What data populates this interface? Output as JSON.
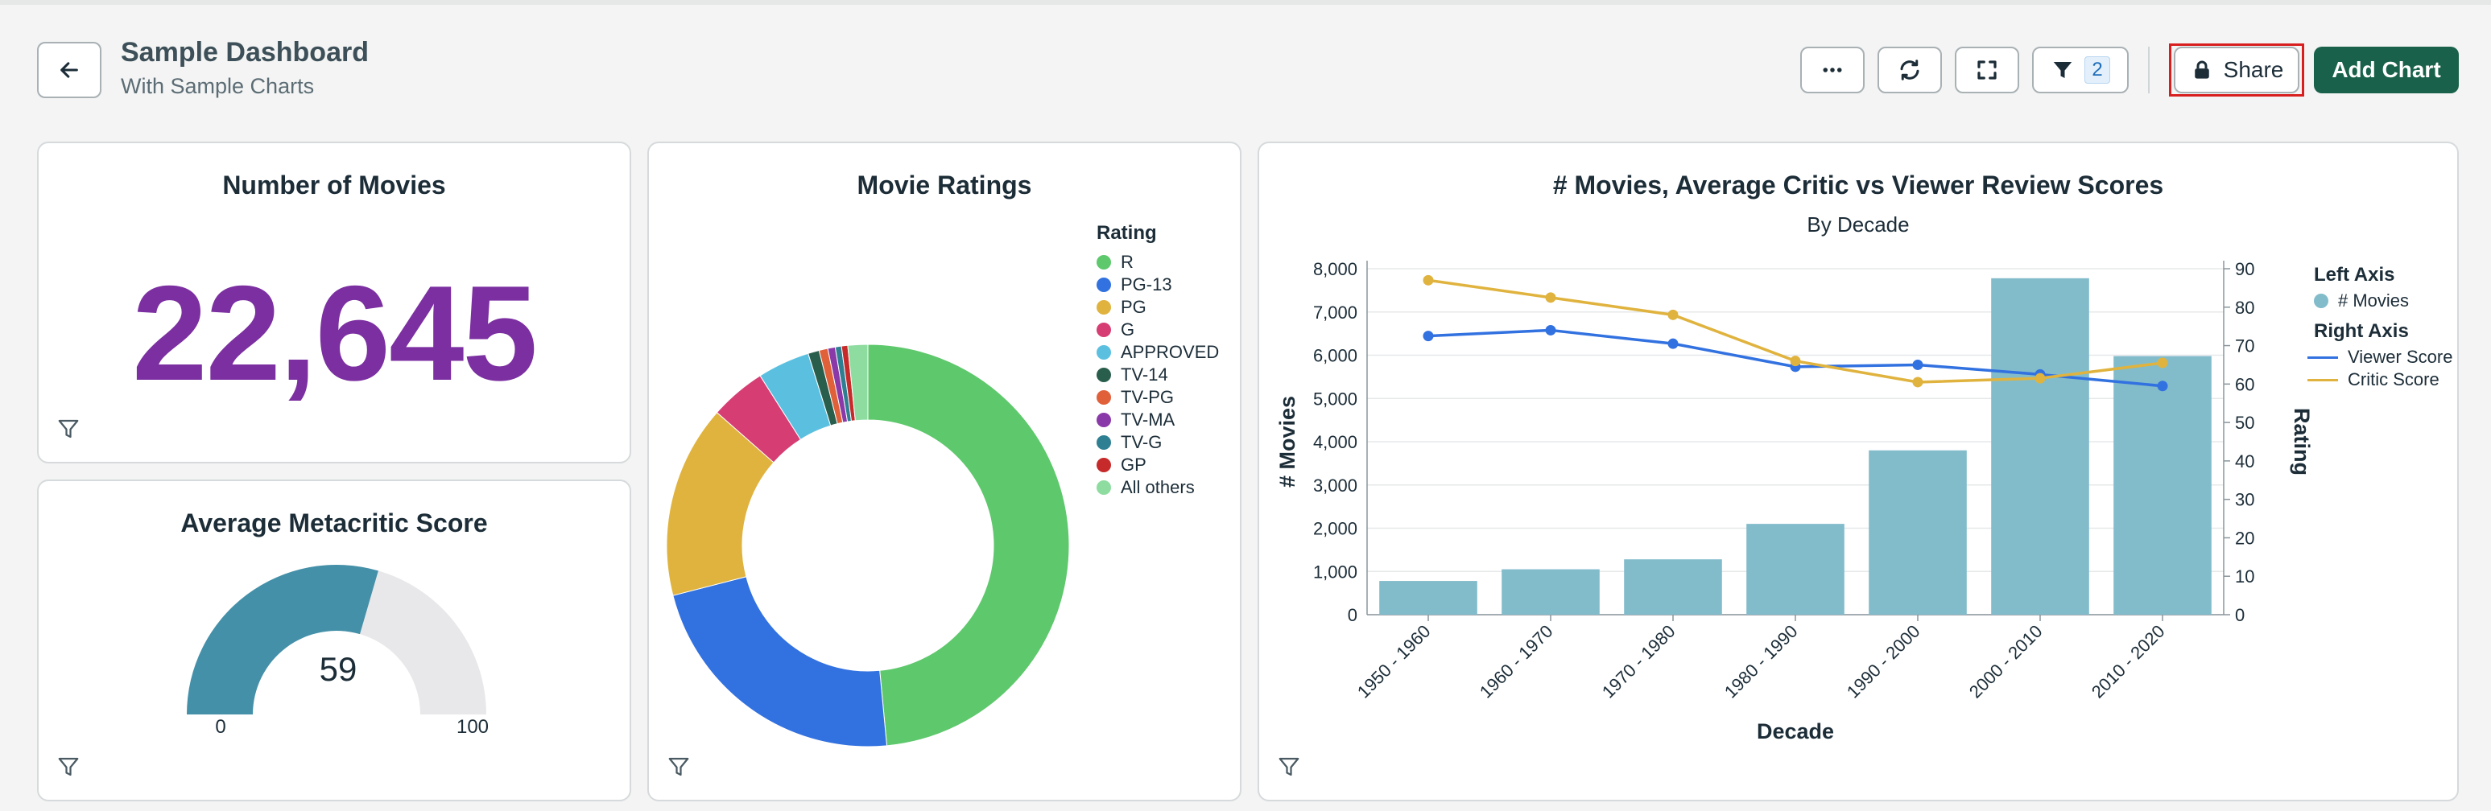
{
  "header": {
    "title": "Sample Dashboard",
    "subtitle": "With Sample Charts",
    "more_icon": "more-horizontal-icon",
    "refresh_icon": "refresh-icon",
    "fullscreen_icon": "fullscreen-icon",
    "filter_count": "2",
    "share_label": "Share",
    "add_chart_label": "Add Chart"
  },
  "cards": {
    "movies_count": {
      "title": "Number of Movies",
      "value": "22,645",
      "color": "#7b2fa0"
    },
    "metacritic": {
      "title": "Average Metacritic Score",
      "value": "59",
      "min": "0",
      "max": "100",
      "fraction": 0.59,
      "fill_color": "#4490a9",
      "track_color": "#e8e8ea"
    },
    "ratings": {
      "title": "Movie Ratings",
      "legend_title": "Rating"
    },
    "combo": {
      "title": "# Movies, Average Critic vs Viewer Review Scores",
      "subtitle": "By Decade"
    }
  },
  "chart_data": [
    {
      "type": "pie",
      "title": "Movie Ratings",
      "legend_title": "Rating",
      "donut": true,
      "slices": [
        {
          "name": "R",
          "value": 48.5,
          "color": "#5ec86c"
        },
        {
          "name": "PG-13",
          "value": 22.5,
          "color": "#3271e0"
        },
        {
          "name": "PG",
          "value": 15.5,
          "color": "#e0b33e"
        },
        {
          "name": "G",
          "value": 4.5,
          "color": "#d63d73"
        },
        {
          "name": "APPROVED",
          "value": 4.2,
          "color": "#5bc0e0"
        },
        {
          "name": "TV-14",
          "value": 0.9,
          "color": "#2a5e4c"
        },
        {
          "name": "TV-PG",
          "value": 0.7,
          "color": "#e0603a"
        },
        {
          "name": "TV-MA",
          "value": 0.6,
          "color": "#8a3aa8"
        },
        {
          "name": "TV-G",
          "value": 0.5,
          "color": "#2f7f92"
        },
        {
          "name": "GP",
          "value": 0.5,
          "color": "#c62a2a"
        },
        {
          "name": "All others",
          "value": 1.6,
          "color": "#8edca0"
        }
      ]
    },
    {
      "type": "bar+line",
      "title": "# Movies, Average Critic vs Viewer Review Scores",
      "subtitle": "By Decade",
      "xlabel": "Decade",
      "ylabel_left": "# Movies",
      "ylabel_right": "Rating",
      "ylim_left": [
        0,
        8000
      ],
      "ylim_right": [
        0,
        90
      ],
      "yticks_left": [
        "0",
        "1,000",
        "2,000",
        "3,000",
        "4,000",
        "5,000",
        "6,000",
        "7,000",
        "8,000"
      ],
      "yticks_right": [
        "0",
        "10",
        "20",
        "30",
        "40",
        "50",
        "60",
        "70",
        "80",
        "90"
      ],
      "categories": [
        "1950 - 1960",
        "1960 - 1970",
        "1970 - 1980",
        "1980 - 1990",
        "1990 - 2000",
        "2000 - 2010",
        "2010 - 2020"
      ],
      "legend": {
        "left_title": "Left Axis",
        "right_title": "Right Axis"
      },
      "bars": {
        "name": "# Movies",
        "color": "#82bccb",
        "values": [
          780,
          1050,
          1280,
          2100,
          3800,
          7780,
          5980
        ]
      },
      "lines": [
        {
          "name": "Viewer Score",
          "color": "#3271e0",
          "values": [
            72.5,
            74,
            70.5,
            64.5,
            65,
            62.5,
            59.5
          ]
        },
        {
          "name": "Critic Score",
          "color": "#e0b33e",
          "values": [
            87,
            82.5,
            78,
            66,
            60.5,
            61.5,
            65.5
          ]
        }
      ]
    }
  ]
}
